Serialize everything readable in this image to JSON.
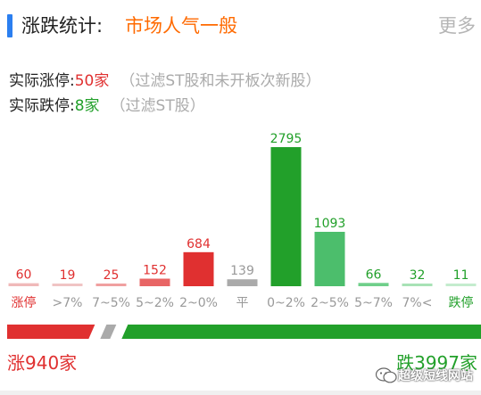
{
  "header": {
    "title": "涨跌统计:",
    "sentiment": "市场人气一般",
    "more_label": "更多",
    "accent_color": "#2b7ff0",
    "sentiment_color": "#ff6a00"
  },
  "limits": {
    "up_label": "实际涨停:",
    "up_count": "50家",
    "up_note": "（过滤ST股和未开板次新股）",
    "down_label": "实际跌停:",
    "down_count": "8家",
    "down_note": "（过滤ST股）"
  },
  "chart_data": {
    "type": "bar",
    "categories": [
      "涨停",
      ">7%",
      "7~5%",
      "5~2%",
      "2~0%",
      "平",
      "0~2%",
      "2~5%",
      "5~7%",
      "7%<",
      "跌停"
    ],
    "values": [
      60,
      19,
      25,
      152,
      684,
      139,
      2795,
      1093,
      66,
      32,
      11
    ],
    "colors": [
      "#f0b9b9",
      "#f0c4c4",
      "#f0a0a0",
      "#e86565",
      "#e03030",
      "#aaaaaa",
      "#22a02a",
      "#4cbe6c",
      "#6fcf8a",
      "#a8e2b6",
      "#c4ecce"
    ],
    "value_colors": [
      "#e03030",
      "#e03030",
      "#e03030",
      "#e03030",
      "#e03030",
      "#999999",
      "#22a02a",
      "#22a02a",
      "#22a02a",
      "#22a02a",
      "#22a02a"
    ],
    "label_colors": [
      "#e03030",
      "#999999",
      "#999999",
      "#999999",
      "#999999",
      "#999999",
      "#999999",
      "#999999",
      "#999999",
      "#999999",
      "#22a02a"
    ]
  },
  "ratio": {
    "up_total": 940,
    "flat_total": 139,
    "down_total": 3997,
    "up_color": "#e03030",
    "flat_color": "#aaaaaa",
    "down_color": "#22a02a"
  },
  "totals": {
    "up_text": "涨940家",
    "down_text": "跌3997家"
  },
  "watermark": {
    "text": "超级短线网站",
    "icon": "wechat-icon"
  }
}
